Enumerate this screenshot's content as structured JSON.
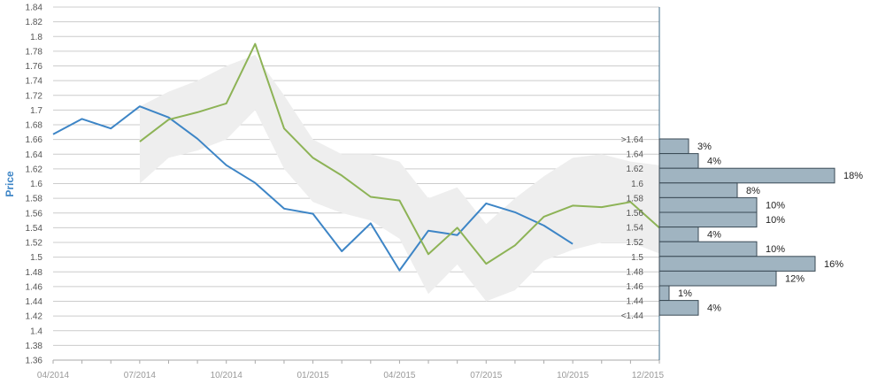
{
  "colors": {
    "actual": "#3d85c6",
    "forecast": "#8db356",
    "band": "#eeeeee",
    "bar_fill": "#a0b4c1",
    "bar_stroke": "#3a4a55",
    "ylabel": "#3d85c6"
  },
  "chart_data": {
    "type": "line",
    "ylabel": "Price",
    "ylim": [
      1.36,
      1.84
    ],
    "yticks": [
      "1.36",
      "1.38",
      "1.4",
      "1.42",
      "1.44",
      "1.46",
      "1.48",
      "1.5",
      "1.52",
      "1.54",
      "1.56",
      "1.58",
      "1.6",
      "1.62",
      "1.64",
      "1.66",
      "1.68",
      "1.7",
      "1.72",
      "1.74",
      "1.76",
      "1.78",
      "1.8",
      "1.82",
      "1.84"
    ],
    "xticks": [
      "04/2014",
      "07/2014",
      "10/2014",
      "01/2015",
      "04/2015",
      "07/2015",
      "10/2015",
      "12/2015"
    ],
    "grid": true,
    "series": [
      {
        "key": "actual",
        "x": [
          "2014-04",
          "2014-05",
          "2014-06",
          "2014-07",
          "2014-08",
          "2014-09",
          "2014-10",
          "2014-11",
          "2014-12",
          "2015-01",
          "2015-02",
          "2015-03",
          "2015-04",
          "2015-05",
          "2015-06",
          "2015-07",
          "2015-08",
          "2015-09",
          "2015-10"
        ],
        "values": [
          1.667,
          1.688,
          1.675,
          1.705,
          1.69,
          1.661,
          1.625,
          1.601,
          1.566,
          1.559,
          1.508,
          1.546,
          1.482,
          1.536,
          1.53,
          1.573,
          1.561,
          1.543,
          1.518
        ]
      },
      {
        "key": "forecast",
        "x": [
          "2014-07",
          "2014-08",
          "2014-09",
          "2014-10",
          "2014-11",
          "2014-12",
          "2015-01",
          "2015-02",
          "2015-03",
          "2015-04",
          "2015-05",
          "2015-06",
          "2015-07",
          "2015-08",
          "2015-09",
          "2015-10",
          "2015-11",
          "2015-12",
          "2016-01"
        ],
        "values": [
          1.657,
          1.687,
          1.697,
          1.709,
          1.79,
          1.675,
          1.635,
          1.611,
          1.582,
          1.577,
          1.504,
          1.54,
          1.491,
          1.516,
          1.555,
          1.57,
          1.568,
          1.575,
          1.54
        ]
      }
    ],
    "band": {
      "x": [
        "2014-07",
        "2014-08",
        "2014-09",
        "2014-10",
        "2014-11",
        "2014-12",
        "2015-01",
        "2015-02",
        "2015-03",
        "2015-04",
        "2015-05",
        "2015-06",
        "2015-07",
        "2015-08",
        "2015-09",
        "2015-10",
        "2015-11",
        "2015-12",
        "2016-01"
      ],
      "upper": [
        1.705,
        1.725,
        1.74,
        1.76,
        1.775,
        1.72,
        1.66,
        1.64,
        1.64,
        1.63,
        1.58,
        1.595,
        1.545,
        1.58,
        1.61,
        1.635,
        1.64,
        1.63,
        1.625
      ],
      "lower": [
        1.6,
        1.635,
        1.645,
        1.66,
        1.7,
        1.62,
        1.575,
        1.56,
        1.55,
        1.525,
        1.45,
        1.49,
        1.44,
        1.455,
        1.495,
        1.51,
        1.52,
        1.52,
        1.505
      ]
    },
    "distribution": {
      "bins": [
        {
          "label": ">1.64",
          "percent": 3,
          "text": "3%"
        },
        {
          "label": "1.64",
          "percent": 4,
          "text": "4%"
        },
        {
          "label": "1.62",
          "percent": 18,
          "text": "18%"
        },
        {
          "label": "1.6",
          "percent": 8,
          "text": "8%"
        },
        {
          "label": "1.58",
          "percent": 10,
          "text": "10%"
        },
        {
          "label": "1.56",
          "percent": 10,
          "text": "10%"
        },
        {
          "label": "1.54",
          "percent": 4,
          "text": "4%"
        },
        {
          "label": "1.52",
          "percent": 10,
          "text": "10%"
        },
        {
          "label": "1.5",
          "percent": 16,
          "text": "16%"
        },
        {
          "label": "1.48",
          "percent": 12,
          "text": "12%"
        },
        {
          "label": "1.46",
          "percent": 1,
          "text": "1%"
        },
        {
          "label": "1.44",
          "percent": 4,
          "text": "4%"
        },
        {
          "label": "<1.44",
          "percent": null,
          "text": ""
        }
      ]
    }
  }
}
